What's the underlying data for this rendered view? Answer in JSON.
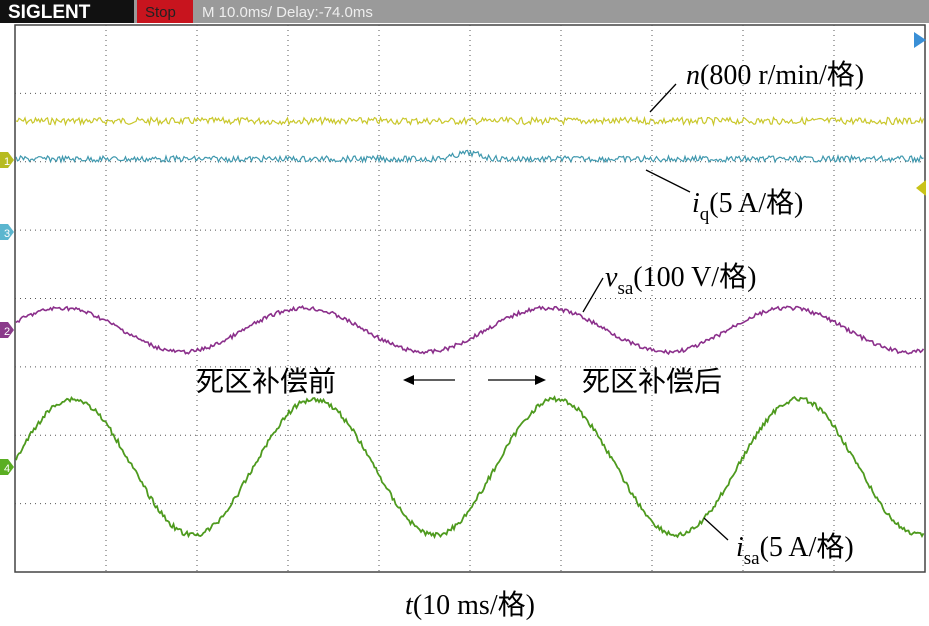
{
  "header": {
    "brand": "SIGLENT",
    "status": "Stop",
    "timebase": "M 10.0ms/ Delay:-74.0ms"
  },
  "channel_markers": [
    "1",
    "3",
    "2",
    "4"
  ],
  "labels": {
    "n": {
      "symbol": "n",
      "unit": "(800 r/min/格)"
    },
    "iq": {
      "symbol": "i",
      "subscript": "q",
      "unit": "(5 A/格)"
    },
    "vsa": {
      "symbol": "v",
      "subscript": "sa",
      "unit": "(100 V/格)"
    },
    "isa": {
      "symbol": "i",
      "subscript": "sa",
      "unit": "(5 A/格)"
    },
    "before": "死区补偿前",
    "after": "死区补偿后",
    "time": {
      "symbol": "t",
      "unit": "(10 ms/格)"
    }
  }
}
